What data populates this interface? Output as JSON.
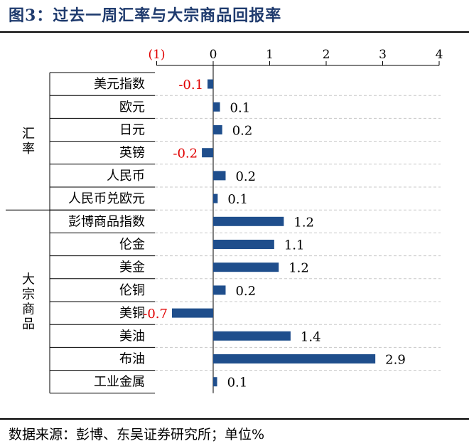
{
  "title": "图3：过去一周汇率与大宗商品回报率",
  "source": "数据来源：彭博、东吴证券研究所；单位%",
  "chart_data": {
    "type": "bar",
    "orientation": "horizontal",
    "xlim": [
      -1,
      4
    ],
    "x_ticks": [
      -1,
      0,
      1,
      2,
      3,
      4
    ],
    "x_tick_labels": [
      "(1)",
      "0",
      "1",
      "2",
      "3",
      "4"
    ],
    "grid": "dashed horizontal",
    "groups": [
      {
        "label": "汇率",
        "start": 0,
        "end": 5
      },
      {
        "label": "大宗商品",
        "start": 6,
        "end": 13
      }
    ],
    "categories": [
      "美元指数",
      "欧元",
      "日元",
      "英镑",
      "人民币",
      "人民币兑欧元",
      "彭博商品指数",
      "伦金",
      "美金",
      "伦铜",
      "美铜",
      "美油",
      "布油",
      "工业金属"
    ],
    "values": [
      -0.1,
      0.12,
      0.16,
      -0.2,
      0.22,
      0.08,
      1.25,
      1.08,
      1.16,
      0.22,
      -0.73,
      1.37,
      2.87,
      0.07
    ],
    "value_labels": [
      "-0.1",
      "0.1",
      "0.2",
      "-0.2",
      "0.2",
      "0.1",
      "1.2",
      "1.1",
      "1.2",
      "0.2",
      "-0.7",
      "1.4",
      "2.9",
      "0.1"
    ],
    "colors": {
      "bar": "#1f4e8c",
      "negative_label": "#e00000",
      "positive_label": "#000000"
    }
  }
}
